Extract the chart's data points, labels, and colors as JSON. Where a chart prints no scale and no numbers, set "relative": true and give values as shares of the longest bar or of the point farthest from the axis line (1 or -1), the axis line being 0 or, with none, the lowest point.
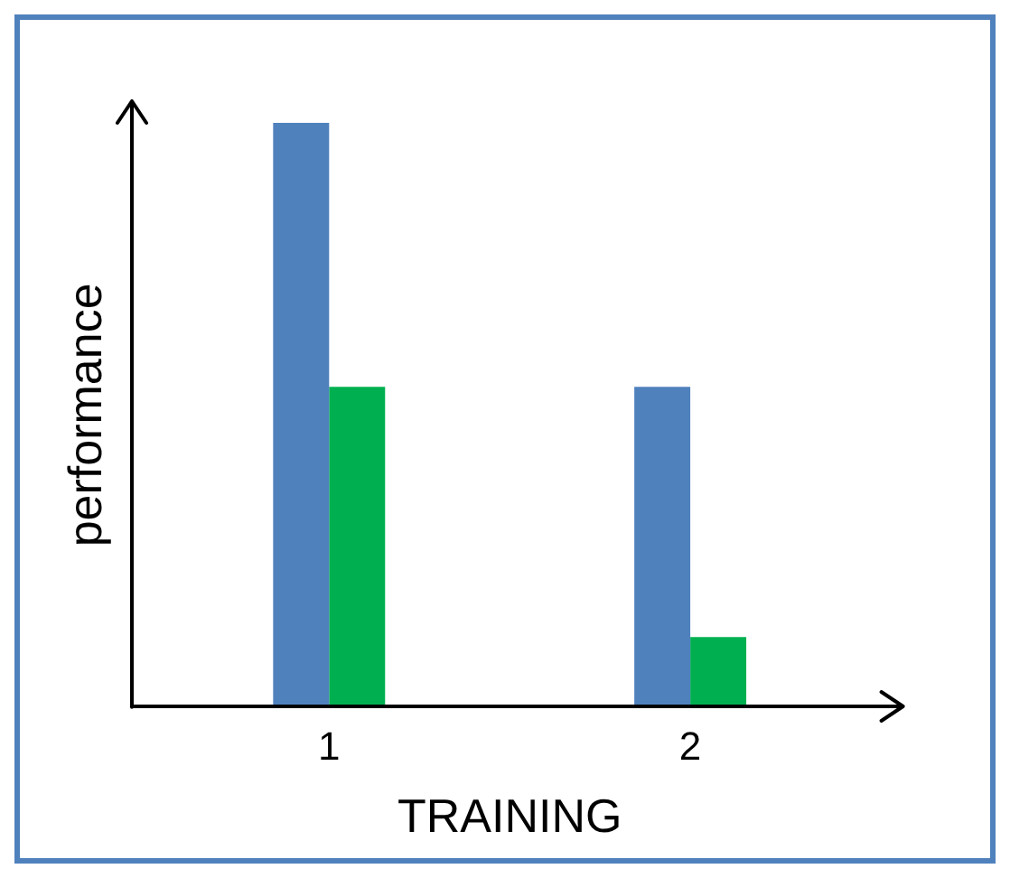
{
  "chart_data": {
    "type": "bar",
    "relative": true,
    "xlabel": "TRAINING",
    "ylabel": "performance",
    "categories": [
      "1",
      "2"
    ],
    "legend": false,
    "grid": false,
    "series": [
      {
        "color": "#4f81bd",
        "values": [
          1,
          0.548
        ]
      },
      {
        "color": "#00b050",
        "values": [
          0.548,
          0.12
        ]
      }
    ]
  }
}
